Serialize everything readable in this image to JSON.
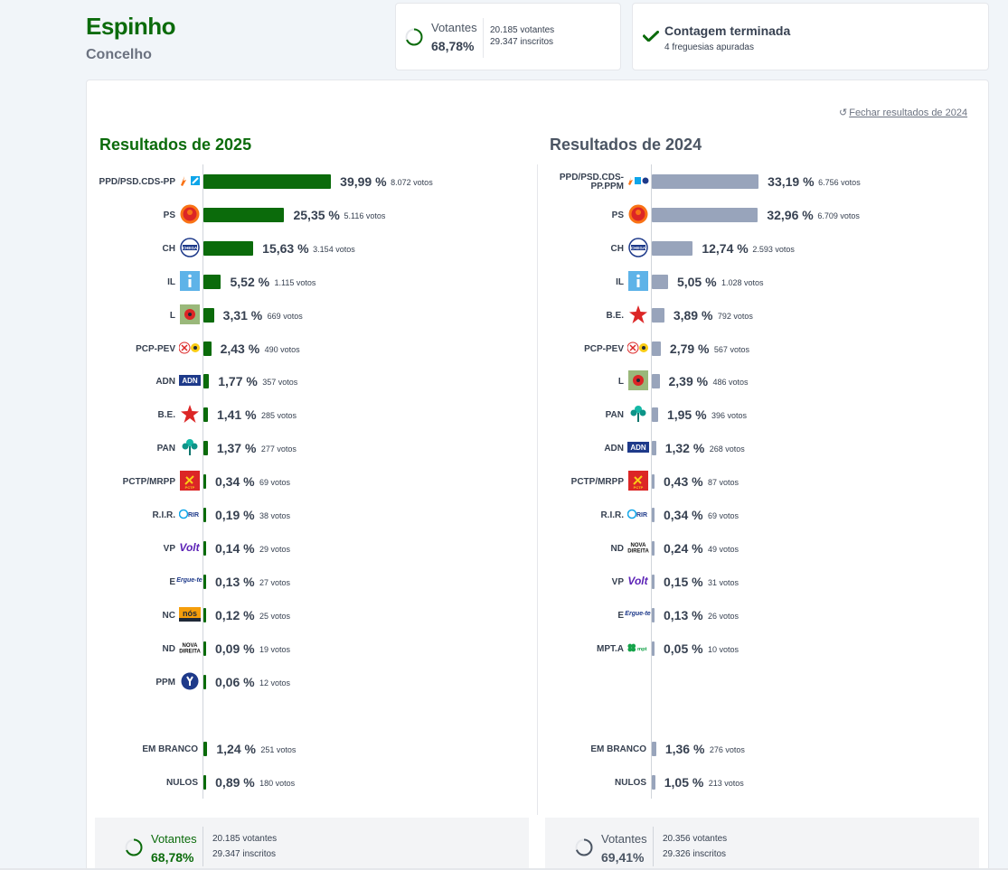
{
  "header": {
    "title": "Espinho",
    "subtitle": "Concelho"
  },
  "turnout": {
    "label": "Votantes",
    "percent": "68,78%",
    "voters": "20.185 votantes",
    "registered": "29.347 inscritos",
    "fraction": 0.6878
  },
  "count_status": {
    "title": "Contagem terminada",
    "subtitle": "4 freguesias apuradas"
  },
  "close_link": "Fechar resultados de 2024",
  "results_2025": {
    "heading": "Resultados de 2025",
    "color": "#0b6b0b",
    "parties": [
      {
        "name": "PPD/PSD.CDS-PP",
        "logo": "psd-cds-logo",
        "pct_label": "39,99 %",
        "votes_label": "8.072 votos",
        "pct": 39.99
      },
      {
        "name": "PS",
        "logo": "ps-logo",
        "pct_label": "25,35 %",
        "votes_label": "5.116 votos",
        "pct": 25.35
      },
      {
        "name": "CH",
        "logo": "chega-logo",
        "pct_label": "15,63 %",
        "votes_label": "3.154 votos",
        "pct": 15.63
      },
      {
        "name": "IL",
        "logo": "il-logo",
        "pct_label": "5,52 %",
        "votes_label": "1.115 votos",
        "pct": 5.52
      },
      {
        "name": "L",
        "logo": "livre-logo",
        "pct_label": "3,31 %",
        "votes_label": "669 votos",
        "pct": 3.31
      },
      {
        "name": "PCP-PEV",
        "logo": "cdu-logo",
        "pct_label": "2,43 %",
        "votes_label": "490 votos",
        "pct": 2.43
      },
      {
        "name": "ADN",
        "logo": "adn-logo",
        "pct_label": "1,77 %",
        "votes_label": "357 votos",
        "pct": 1.77
      },
      {
        "name": "B.E.",
        "logo": "be-logo",
        "pct_label": "1,41 %",
        "votes_label": "285 votos",
        "pct": 1.41
      },
      {
        "name": "PAN",
        "logo": "pan-logo",
        "pct_label": "1,37 %",
        "votes_label": "277 votos",
        "pct": 1.37
      },
      {
        "name": "PCTP/MRPP",
        "logo": "pctp-logo",
        "pct_label": "0,34 %",
        "votes_label": "69 votos",
        "pct": 0.34
      },
      {
        "name": "R.I.R.",
        "logo": "rir-logo",
        "pct_label": "0,19 %",
        "votes_label": "38 votos",
        "pct": 0.19
      },
      {
        "name": "VP",
        "logo": "volt-logo",
        "pct_label": "0,14 %",
        "votes_label": "29 votos",
        "pct": 0.14
      },
      {
        "name": "E",
        "logo": "ergue-te-logo",
        "pct_label": "0,13 %",
        "votes_label": "27 votos",
        "pct": 0.13
      },
      {
        "name": "NC",
        "logo": "nos-cidadaos-logo",
        "pct_label": "0,12 %",
        "votes_label": "25 votos",
        "pct": 0.12
      },
      {
        "name": "ND",
        "logo": "nova-direita-logo",
        "pct_label": "0,09 %",
        "votes_label": "19 votos",
        "pct": 0.09
      },
      {
        "name": "PPM",
        "logo": "ppm-logo",
        "pct_label": "0,06 %",
        "votes_label": "12 votos",
        "pct": 0.06
      }
    ],
    "blank": {
      "name": "EM BRANCO",
      "pct_label": "1,24 %",
      "votes_label": "251 votos",
      "pct": 1.24
    },
    "null": {
      "name": "NULOS",
      "pct_label": "0,89 %",
      "votes_label": "180 votos",
      "pct": 0.89
    },
    "footer": {
      "label": "Votantes",
      "percent": "68,78%",
      "voters": "20.185 votantes",
      "registered": "29.347 inscritos",
      "fraction": 0.6878
    }
  },
  "results_2024": {
    "heading": "Resultados de 2024",
    "color": "#98a4bb",
    "parties": [
      {
        "name": "PPD/PSD.CDS-PP.PPM",
        "name_lines": [
          "PPD/PSD.CDS-",
          "PP.PPM"
        ],
        "logo": "ad-logo",
        "pct_label": "33,19 %",
        "votes_label": "6.756 votos",
        "pct": 33.19
      },
      {
        "name": "PS",
        "logo": "ps-logo",
        "pct_label": "32,96 %",
        "votes_label": "6.709 votos",
        "pct": 32.96
      },
      {
        "name": "CH",
        "logo": "chega-logo",
        "pct_label": "12,74 %",
        "votes_label": "2.593 votos",
        "pct": 12.74
      },
      {
        "name": "IL",
        "logo": "il-logo",
        "pct_label": "5,05 %",
        "votes_label": "1.028 votos",
        "pct": 5.05
      },
      {
        "name": "B.E.",
        "logo": "be-logo",
        "pct_label": "3,89 %",
        "votes_label": "792 votos",
        "pct": 3.89
      },
      {
        "name": "PCP-PEV",
        "logo": "cdu-logo",
        "pct_label": "2,79 %",
        "votes_label": "567 votos",
        "pct": 2.79
      },
      {
        "name": "L",
        "logo": "livre-logo",
        "pct_label": "2,39 %",
        "votes_label": "486 votos",
        "pct": 2.39
      },
      {
        "name": "PAN",
        "logo": "pan-logo",
        "pct_label": "1,95 %",
        "votes_label": "396 votos",
        "pct": 1.95
      },
      {
        "name": "ADN",
        "logo": "adn-logo",
        "pct_label": "1,32 %",
        "votes_label": "268 votos",
        "pct": 1.32
      },
      {
        "name": "PCTP/MRPP",
        "logo": "pctp-logo",
        "pct_label": "0,43 %",
        "votes_label": "87 votos",
        "pct": 0.43
      },
      {
        "name": "R.I.R.",
        "logo": "rir-logo",
        "pct_label": "0,34 %",
        "votes_label": "69 votos",
        "pct": 0.34
      },
      {
        "name": "ND",
        "logo": "nova-direita-logo",
        "pct_label": "0,24 %",
        "votes_label": "49 votos",
        "pct": 0.24
      },
      {
        "name": "VP",
        "logo": "volt-logo",
        "pct_label": "0,15 %",
        "votes_label": "31 votos",
        "pct": 0.15
      },
      {
        "name": "E",
        "logo": "ergue-te-logo",
        "pct_label": "0,13 %",
        "votes_label": "26 votos",
        "pct": 0.13
      },
      {
        "name": "MPT.A",
        "logo": "mpt-logo",
        "pct_label": "0,05 %",
        "votes_label": "10 votos",
        "pct": 0.05
      }
    ],
    "blank": {
      "name": "EM BRANCO",
      "pct_label": "1,36 %",
      "votes_label": "276 votos",
      "pct": 1.36
    },
    "null": {
      "name": "NULOS",
      "pct_label": "1,05 %",
      "votes_label": "213 votos",
      "pct": 1.05
    },
    "footer": {
      "label": "Votantes",
      "percent": "69,41%",
      "voters": "20.356 votantes",
      "registered": "29.326 inscritos",
      "fraction": 0.6941
    }
  },
  "logo_text": {
    "adn": "ADN",
    "rir": "RIR",
    "volt": "Volt",
    "ergue": "Ergue-te",
    "nos": "nós",
    "nova": "NOVA DIREITA",
    "pctp": "PCTP",
    "mpt": "mpt",
    "chega": "CHEGA"
  }
}
